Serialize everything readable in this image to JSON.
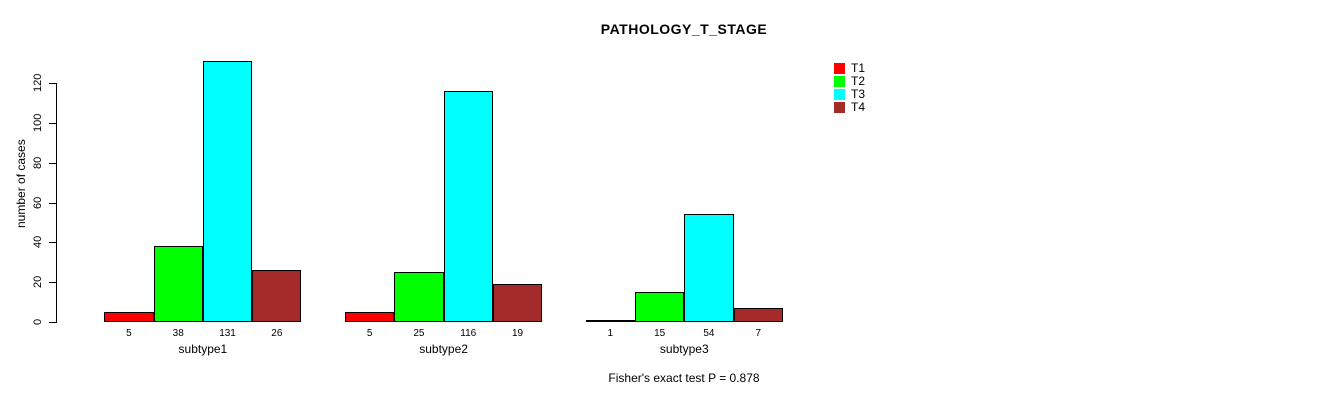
{
  "title": "PATHOLOGY_T_STAGE",
  "annotation": "Fisher's exact test P = 0.878",
  "chart_data": {
    "type": "bar",
    "title": "PATHOLOGY_T_STAGE",
    "categories": [
      "subtype1",
      "subtype2",
      "subtype3"
    ],
    "series": [
      {
        "name": "T1",
        "color": "#FF0000",
        "values": [
          5,
          5,
          1
        ]
      },
      {
        "name": "T2",
        "color": "#00FF00",
        "values": [
          38,
          25,
          15
        ]
      },
      {
        "name": "T3",
        "color": "#00FFFF",
        "values": [
          131,
          116,
          54
        ]
      },
      {
        "name": "T4",
        "color": "#A52A2A",
        "values": [
          26,
          19,
          7
        ]
      }
    ],
    "xlabel": "",
    "ylabel": "number of cases",
    "yticks": [
      0,
      20,
      40,
      60,
      80,
      100,
      120
    ],
    "ylim": [
      0,
      120
    ],
    "bar_borders": true,
    "value_labels_under_bars": true,
    "grid": false,
    "legend_position": "right",
    "annotation": "Fisher's exact test P = 0.878"
  }
}
